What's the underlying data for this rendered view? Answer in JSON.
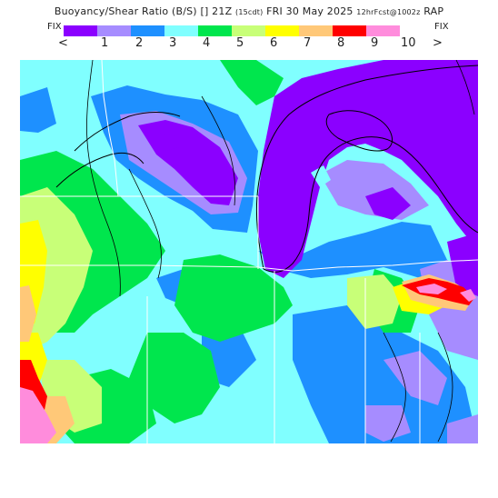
{
  "header": {
    "title_main": "Buoyancy/Shear Ratio (B/S) [] 21Z",
    "title_fcst": "(15cdt)",
    "title_date": "FRI 30 May 2025",
    "title_init": "12hrFcst@1002z",
    "title_model": "RAP"
  },
  "legend": {
    "fix_left": "FIX",
    "fix_right": "FIX",
    "lt_arrow": "<",
    "gt_arrow": ">",
    "ticks": [
      "1",
      "2",
      "3",
      "4",
      "5",
      "6",
      "7",
      "8",
      "9",
      "10"
    ],
    "colors": [
      "#8B00FF",
      "#A68CFF",
      "#1E90FF",
      "#80FFFF",
      "#00E64D",
      "#C8FF78",
      "#FFFF00",
      "#FFC878",
      "#FF0000",
      "#FF8CDC"
    ]
  }
}
